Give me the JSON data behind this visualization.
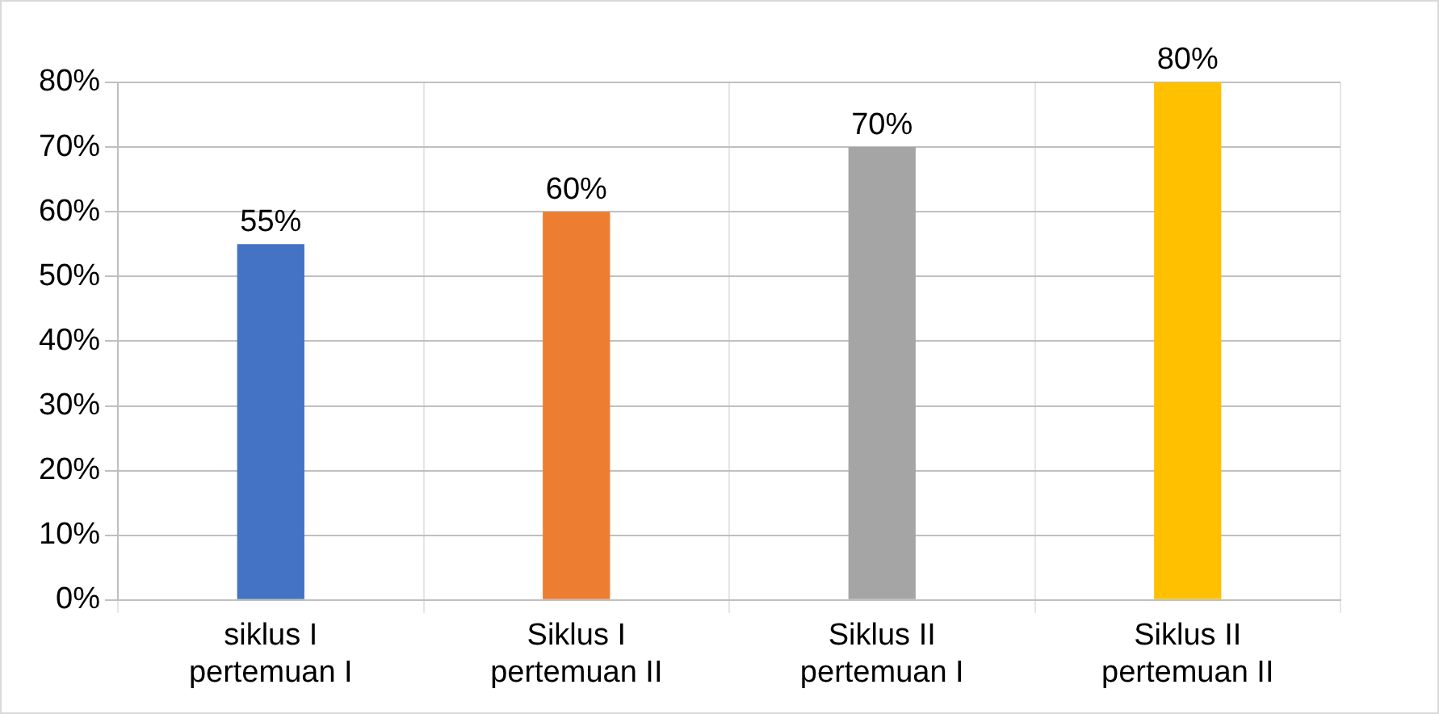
{
  "chart_data": {
    "type": "bar",
    "categories": [
      "siklus I\npertemuan I",
      "Siklus I\npertemuan II",
      "Siklus II\npertemuan I",
      "Siklus II\npertemuan II"
    ],
    "values": [
      55,
      60,
      70,
      80
    ],
    "colors": [
      "#4472c4",
      "#ed7d31",
      "#a5a5a5",
      "#ffc000"
    ],
    "value_labels": [
      "55%",
      "60%",
      "70%",
      "80%"
    ],
    "ylim": [
      0,
      80
    ],
    "yticks": [
      {
        "value": 0,
        "label": "0%"
      },
      {
        "value": 10,
        "label": "10%"
      },
      {
        "value": 20,
        "label": "20%"
      },
      {
        "value": 30,
        "label": "30%"
      },
      {
        "value": 40,
        "label": "40%"
      },
      {
        "value": 50,
        "label": "50%"
      },
      {
        "value": 60,
        "label": "60%"
      },
      {
        "value": 70,
        "label": "70%"
      },
      {
        "value": 80,
        "label": "80%"
      }
    ],
    "grid": true
  }
}
